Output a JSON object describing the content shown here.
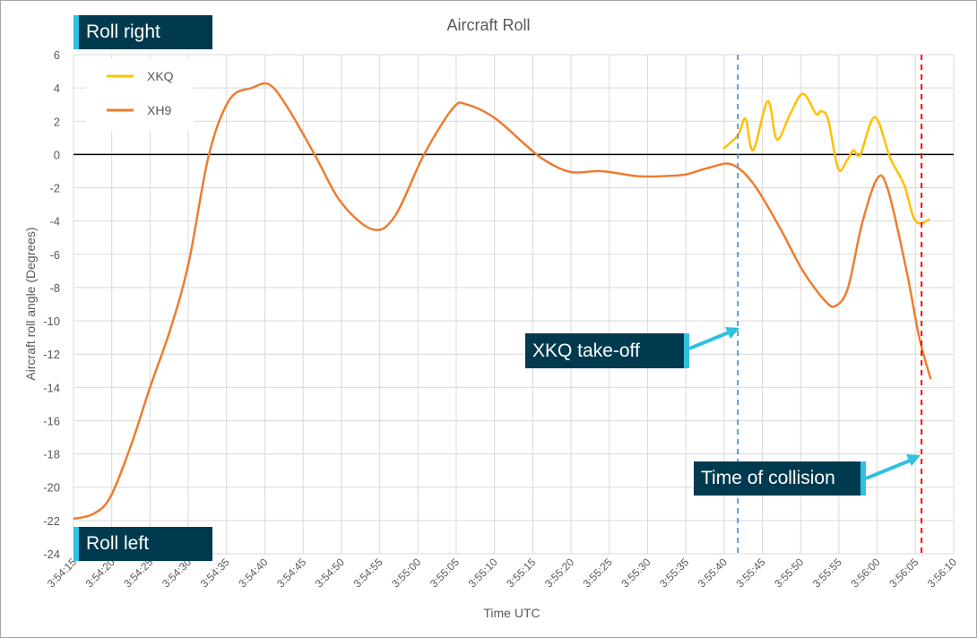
{
  "chart_data": {
    "type": "line",
    "title": "Aircraft Roll",
    "xlabel": "Time UTC",
    "ylabel": "Aircraft roll angle (Degrees)",
    "ylim": [
      -24,
      6
    ],
    "yticks": [
      6,
      4,
      2,
      0,
      -2,
      -4,
      -6,
      -8,
      -10,
      -12,
      -14,
      -16,
      -18,
      -20,
      -22,
      -24
    ],
    "x_unit": "seconds after 3:54:15",
    "xlim": [
      0,
      115
    ],
    "xtick_labels": [
      "3:54:15",
      "3:54:20",
      "3:54:25",
      "3:54:30",
      "3:54:35",
      "3:54:40",
      "3:54:45",
      "3:54:50",
      "3:54:55",
      "3:55:00",
      "3:55:05",
      "3:55:10",
      "3:55:15",
      "3:55:20",
      "3:55:25",
      "3:55:30",
      "3:55:35",
      "3:55:40",
      "3:55:45",
      "3:55:50",
      "3:55:55",
      "3:56:00",
      "3:56:05",
      "3:56:10"
    ],
    "grid": true,
    "legend_position": "top-left",
    "series": [
      {
        "name": "XKQ",
        "color": "#ffc000",
        "x": [
          84.9,
          86.8,
          87.8,
          88.8,
          90.7,
          91.9,
          93.6,
          95.3,
          97.0,
          97.7,
          98.6,
          99.9,
          101.0,
          101.9,
          102.8,
          104.7,
          106.7,
          108.5,
          110.0,
          111.9
        ],
        "y": [
          0.35,
          1.15,
          2.15,
          0.25,
          3.2,
          0.9,
          2.4,
          3.65,
          2.45,
          2.6,
          2.1,
          -0.85,
          -0.4,
          0.25,
          0.0,
          2.25,
          -0.2,
          -1.8,
          -4.0,
          -3.9
        ]
      },
      {
        "name": "XH9",
        "color": "#ed7d31",
        "x": [
          0,
          2.6,
          4.8,
          7.5,
          10,
          12.8,
          15.1,
          17.7,
          20.4,
          23.3,
          25.6,
          28,
          31.5,
          35,
          39.1,
          42,
          45.8,
          49.6,
          51.4,
          55,
          59,
          61.4,
          64.9,
          69,
          73.6,
          77.2,
          80,
          83,
          86,
          88.9,
          92.4,
          95.3,
          98.2,
          99.6,
          101.2,
          103,
          105,
          106.4,
          108.8,
          110.5,
          112
        ],
        "y": [
          -21.9,
          -21.6,
          -20.6,
          -17.5,
          -14,
          -10.3,
          -6.4,
          0,
          3.3,
          4.0,
          4.2,
          2.8,
          0,
          -2.9,
          -4.5,
          -3.7,
          0,
          2.8,
          3.0,
          2.2,
          0.6,
          -0.3,
          -1.05,
          -1.0,
          -1.3,
          -1.3,
          -1.2,
          -0.8,
          -0.6,
          -1.8,
          -4.5,
          -7,
          -8.8,
          -9.1,
          -8,
          -4.2,
          -1.45,
          -2.1,
          -6.9,
          -11,
          -13.5
        ]
      }
    ],
    "markers": [
      {
        "label": "XKQ take-off",
        "x": 86.8,
        "color": "#5b9bd5"
      },
      {
        "label": "Time of collision",
        "x": 110.8,
        "color": "#ff0000"
      }
    ],
    "annotations": [
      "Roll right",
      "Roll left"
    ]
  }
}
